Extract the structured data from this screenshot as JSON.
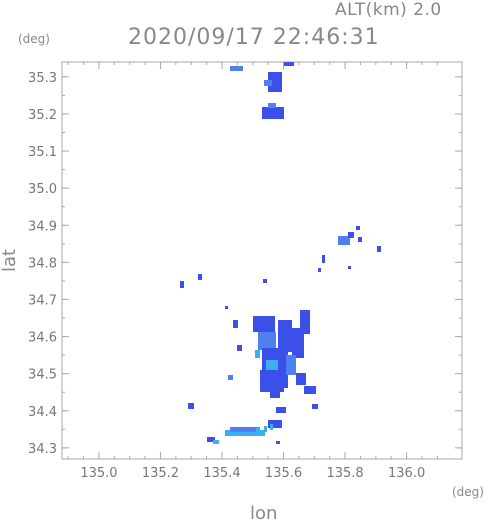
{
  "header": {
    "altitude_label": "ALT(km) 2.0",
    "timestamp": "2020/09/17 22:46:31"
  },
  "axes": {
    "y_unit": "(deg)",
    "x_unit": "(deg)",
    "y_label": "lat",
    "x_label": "lon",
    "y_ticks": [
      "35.3",
      "35.2",
      "35.1",
      "35.0",
      "34.9",
      "34.8",
      "34.7",
      "34.6",
      "34.5",
      "34.4",
      "34.3"
    ],
    "x_ticks": [
      "135.0",
      "135.2",
      "135.4",
      "135.6",
      "135.8",
      "136.0"
    ],
    "x_range": [
      134.88,
      136.18
    ],
    "y_range": [
      34.27,
      35.34
    ]
  },
  "colors": {
    "frame": "#aaaaaa",
    "echo_strong": "#3a50e8",
    "echo_medium": "#4f80f0",
    "echo_light": "#3ab0f0"
  }
}
